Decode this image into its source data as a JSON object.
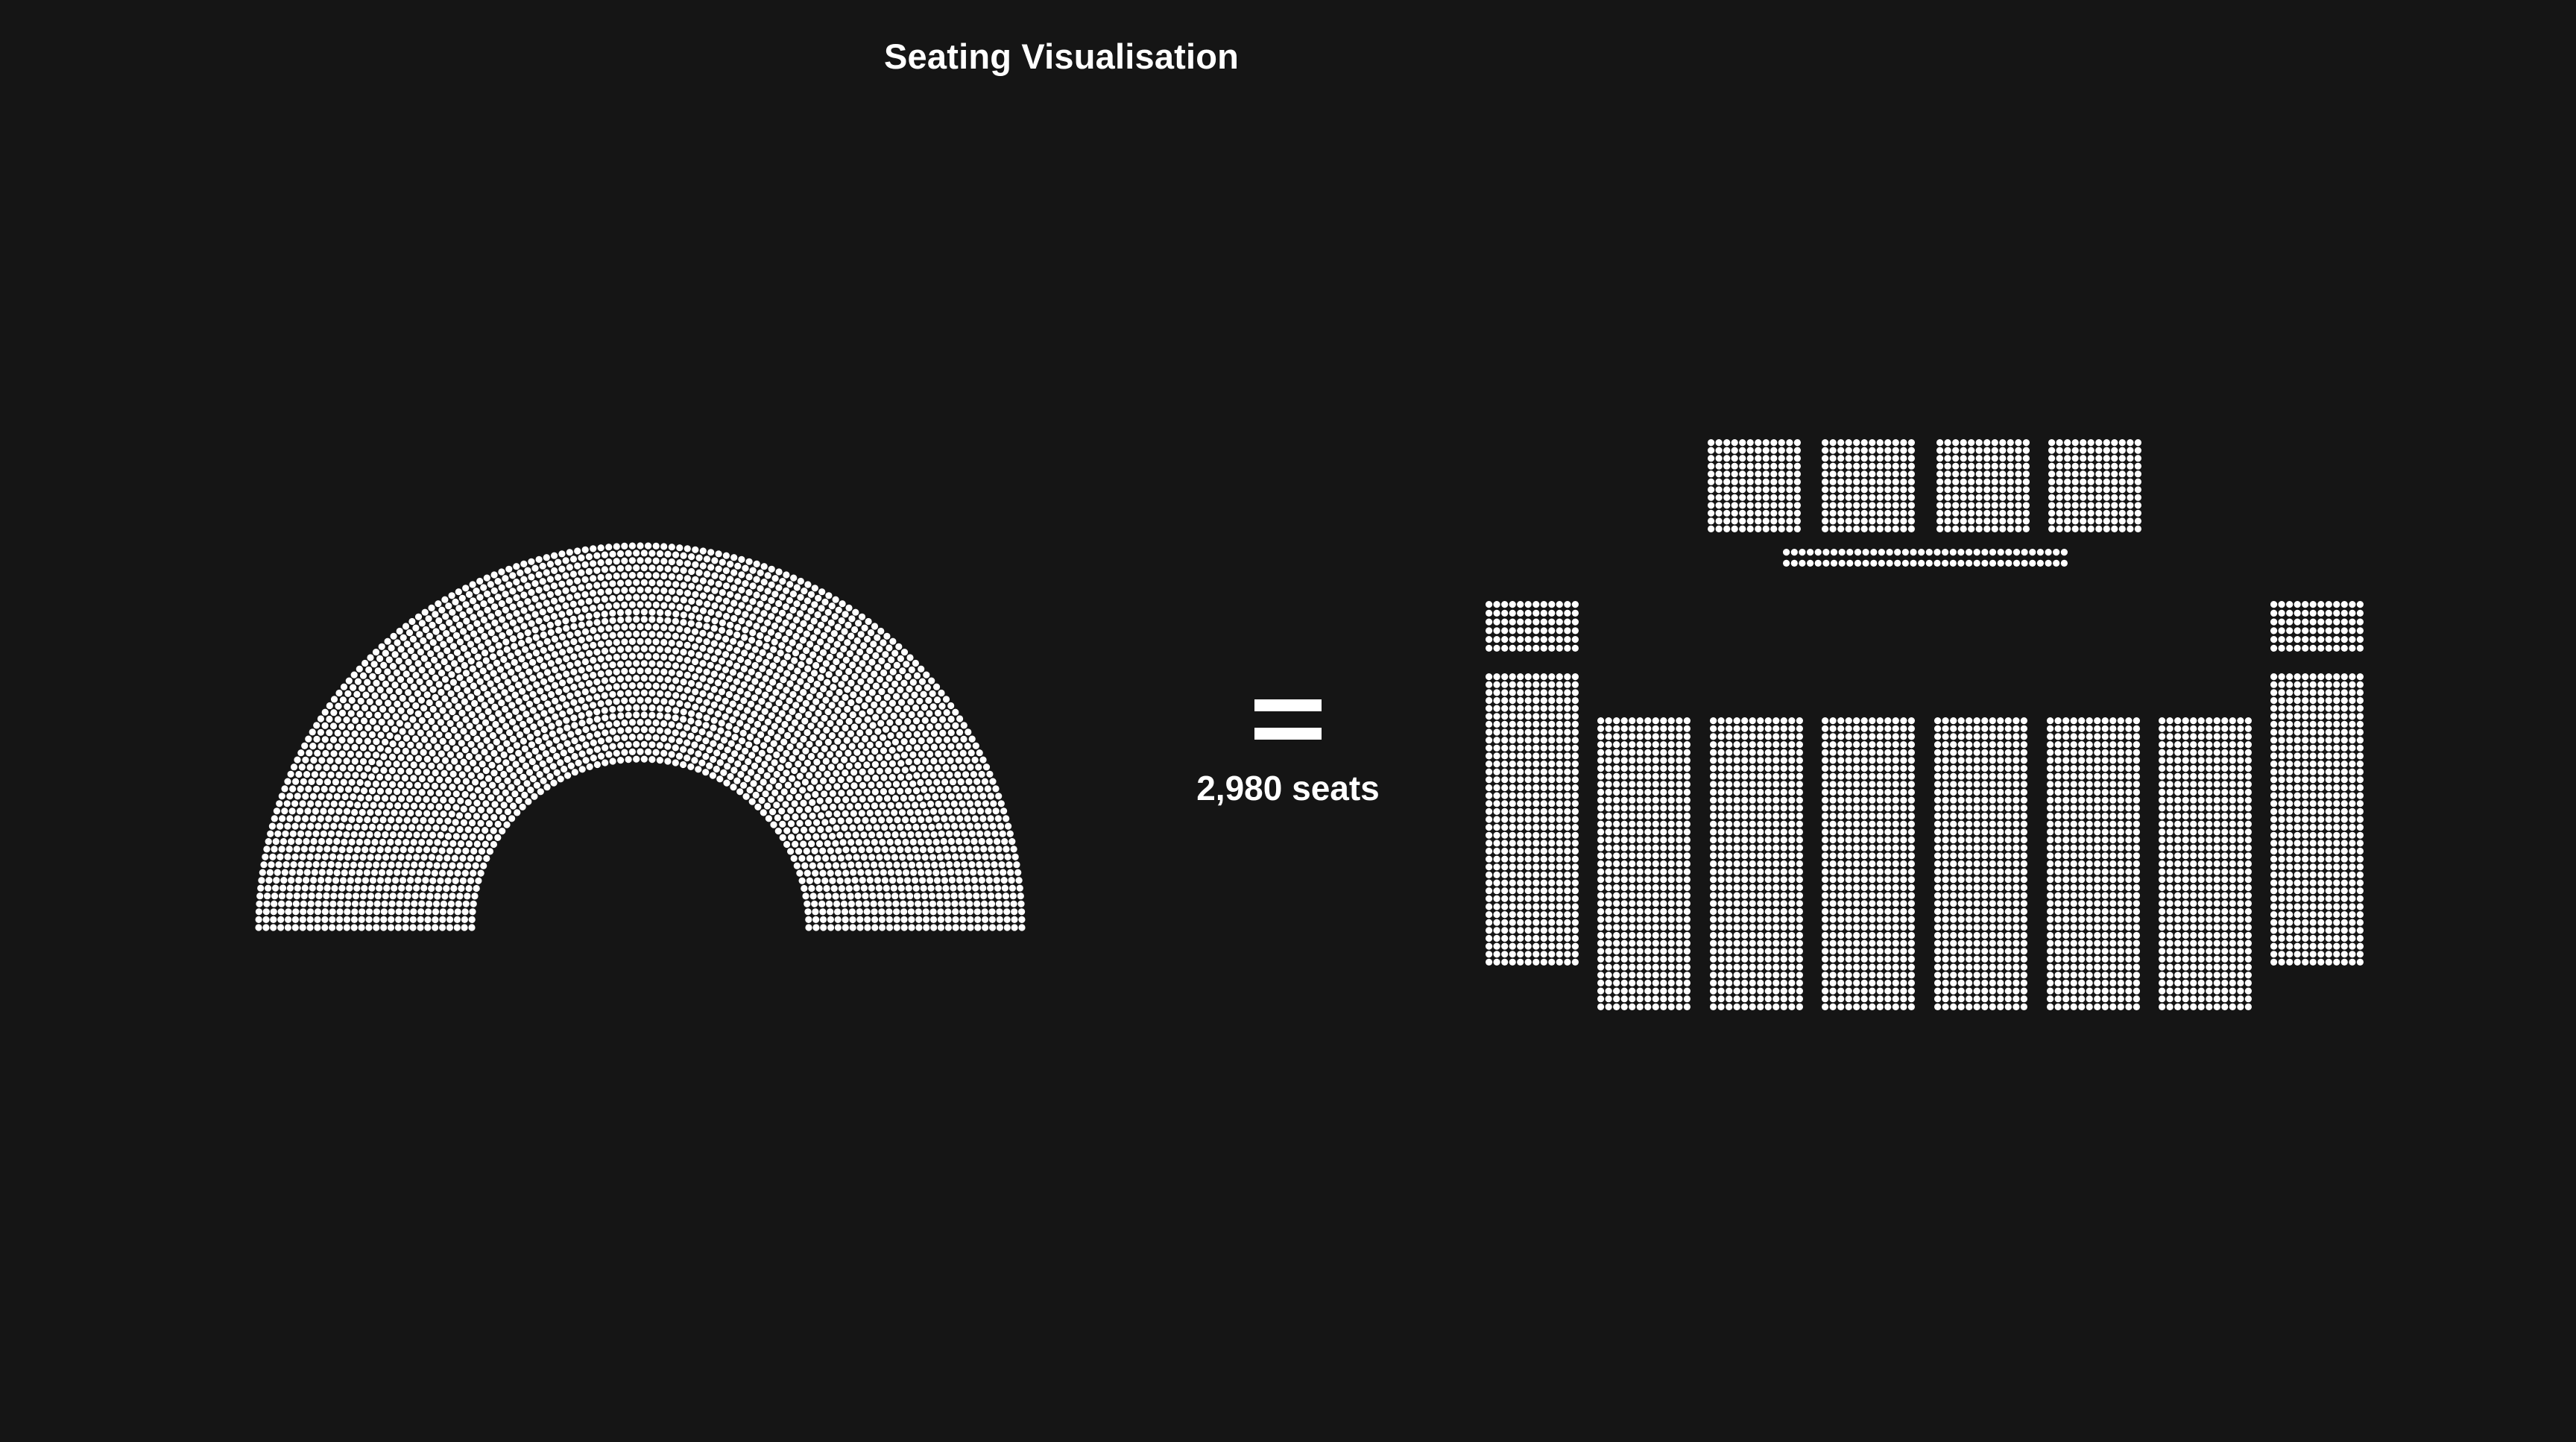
{
  "page": {
    "title": "Seating Visualisation",
    "seat_count_label": "2,980 seats",
    "background_color": "#151515",
    "seat_color": "#ffffff"
  },
  "icons": {
    "equals": "equals-sign"
  }
}
